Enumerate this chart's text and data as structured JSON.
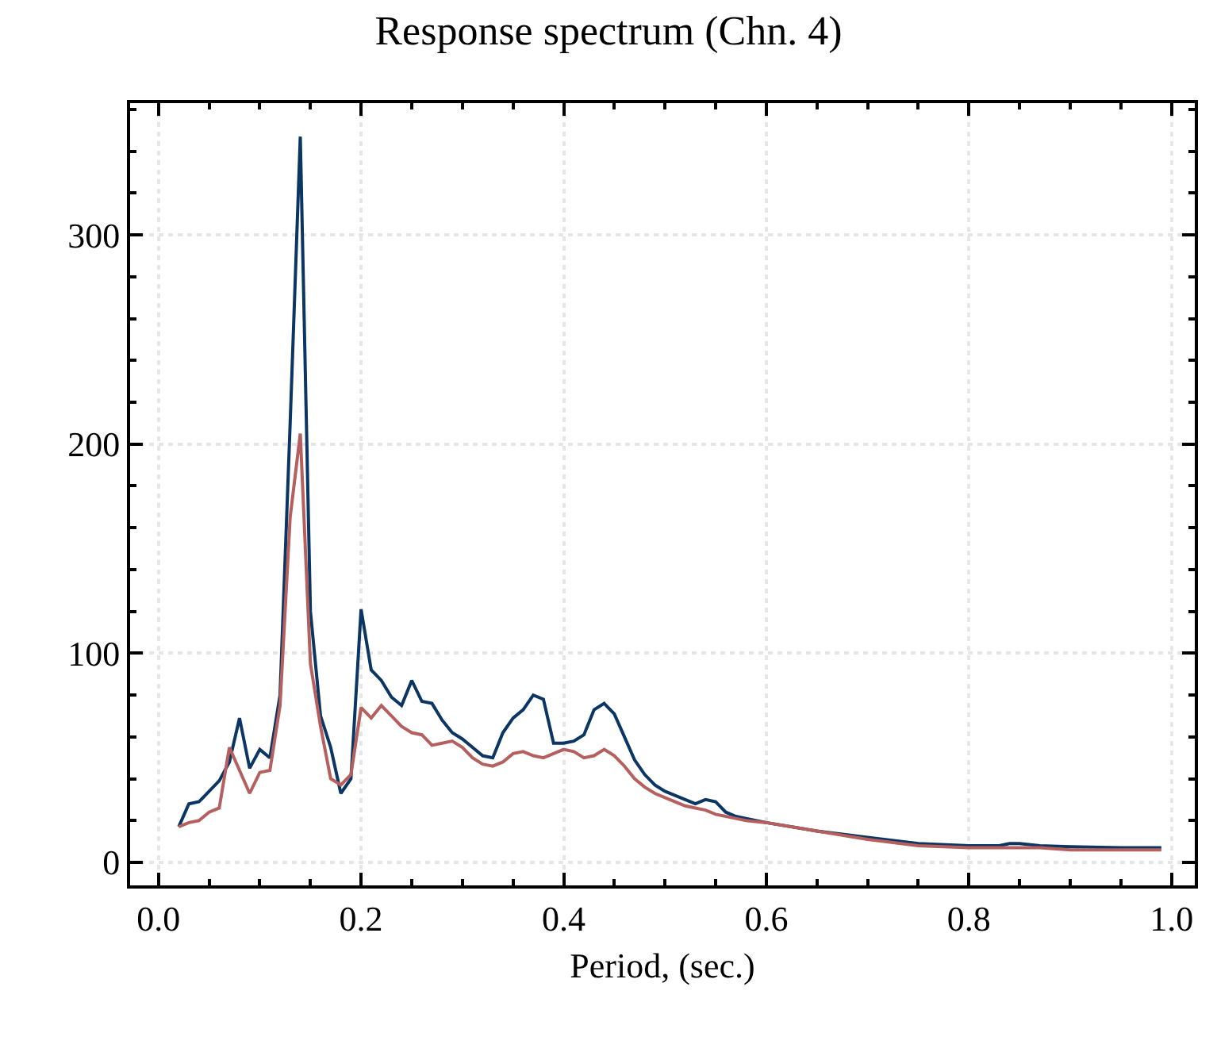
{
  "chart_data": {
    "type": "line",
    "title": "Response spectrum (Chn. 4)",
    "xlabel": "Period, (sec.)",
    "x": [
      0.02,
      0.03,
      0.04,
      0.05,
      0.06,
      0.07,
      0.08,
      0.09,
      0.1,
      0.11,
      0.12,
      0.13,
      0.14,
      0.15,
      0.16,
      0.17,
      0.18,
      0.19,
      0.2,
      0.21,
      0.22,
      0.23,
      0.24,
      0.25,
      0.26,
      0.27,
      0.28,
      0.29,
      0.3,
      0.31,
      0.32,
      0.33,
      0.34,
      0.35,
      0.36,
      0.37,
      0.38,
      0.39,
      0.4,
      0.41,
      0.42,
      0.43,
      0.44,
      0.45,
      0.46,
      0.47,
      0.48,
      0.49,
      0.5,
      0.51,
      0.52,
      0.53,
      0.54,
      0.55,
      0.56,
      0.57,
      0.58,
      0.6,
      0.65,
      0.7,
      0.75,
      0.8,
      0.83,
      0.84,
      0.85,
      0.87,
      0.9,
      0.95,
      0.99
    ],
    "series": [
      {
        "color": "#0b3663",
        "values": [
          17,
          28,
          29,
          34,
          39,
          48,
          69,
          45,
          54,
          50,
          80,
          210,
          347,
          120,
          70,
          55,
          33,
          40,
          121,
          92,
          87,
          79,
          75,
          87,
          77,
          76,
          68,
          62,
          59,
          55,
          51,
          50,
          62,
          69,
          73,
          80,
          78,
          57,
          57,
          58,
          61,
          73,
          76,
          71,
          60,
          49,
          42,
          37,
          34,
          32,
          30,
          28,
          30,
          29,
          24,
          22,
          21,
          19,
          15,
          12,
          9,
          8,
          8,
          9,
          9,
          8,
          7.5,
          7,
          7
        ]
      },
      {
        "color": "#b5605e",
        "values": [
          17,
          19,
          20,
          24,
          26,
          55,
          44,
          33,
          43,
          44,
          75,
          165,
          205,
          95,
          65,
          40,
          37,
          42,
          74,
          69,
          75,
          70,
          65,
          62,
          61,
          56,
          57,
          58,
          55,
          50,
          47,
          46,
          48,
          52,
          53,
          51,
          50,
          52,
          54,
          53,
          50,
          51,
          54,
          51,
          46,
          40,
          36,
          33,
          31,
          29,
          27,
          26,
          25,
          23,
          22,
          21,
          20,
          19,
          15,
          11,
          8,
          7,
          7,
          7,
          7,
          7,
          6,
          6,
          6
        ]
      }
    ],
    "xlim": [
      -0.028,
      1.023
    ],
    "ylim": [
      -11,
      363
    ],
    "xticks": [
      {
        "value": 0,
        "label": "0.0"
      },
      {
        "value": 0.2,
        "label": "0.2"
      },
      {
        "value": 0.4,
        "label": "0.4"
      },
      {
        "value": 0.6,
        "label": "0.6"
      },
      {
        "value": 0.8,
        "label": "0.8"
      },
      {
        "value": 1.0,
        "label": "1.0"
      }
    ],
    "yticks": [
      0,
      100,
      200,
      300
    ],
    "grid": true,
    "line_style": "solid",
    "marker": "none"
  }
}
